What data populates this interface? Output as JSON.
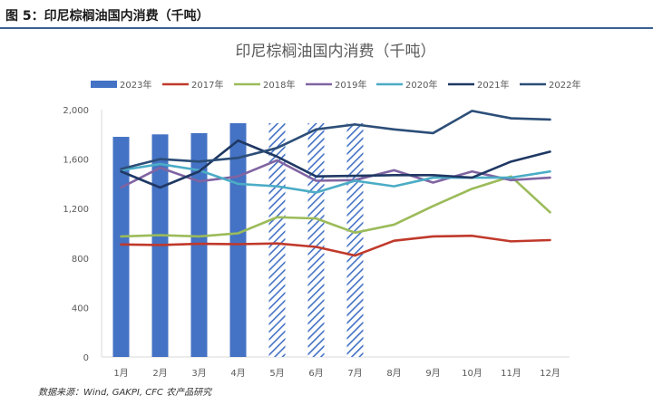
{
  "figure_title": "图 5：印尼棕榈油国内消费（千吨）",
  "source": "数据来源：Wind, GAKPI, CFC 农产品研究",
  "colors": {
    "bar_2023": "#4472c4",
    "hatch_bar": "#4472c4",
    "s2017": "#c0392b",
    "s2018": "#9bbb59",
    "s2019": "#8064a2",
    "s2020": "#4bacc6",
    "s2021": "#1f3864",
    "s2022": "#2c4e78",
    "rule": "#3a5f8f"
  },
  "chart_data": {
    "type": "bar",
    "title": "印尼棕榈油国内消费（千吨）",
    "categories": [
      "1月",
      "2月",
      "3月",
      "4月",
      "5月",
      "6月",
      "7月",
      "8月",
      "9月",
      "10月",
      "11月",
      "12月"
    ],
    "ylim": [
      0,
      2000
    ],
    "yticks": [
      "0",
      "400",
      "800",
      "1,200",
      "1,600",
      "2,000"
    ],
    "ytick_values": [
      0,
      400,
      800,
      1200,
      1600,
      2000
    ],
    "legend_position": "top",
    "bars": {
      "name": "2023年",
      "values": [
        1780,
        1800,
        1810,
        1890,
        null,
        null,
        null,
        null,
        null,
        null,
        null,
        null
      ],
      "hatched_values": [
        null,
        null,
        null,
        null,
        1890,
        1890,
        1890,
        null,
        null,
        null,
        null,
        null
      ]
    },
    "series": [
      {
        "name": "2017年",
        "values": [
          910,
          905,
          915,
          912,
          918,
          890,
          820,
          940,
          975,
          980,
          935,
          945
        ]
      },
      {
        "name": "2018年",
        "values": [
          975,
          985,
          975,
          1000,
          1130,
          1120,
          1005,
          1070,
          1220,
          1360,
          1460,
          1170
        ]
      },
      {
        "name": "2019年",
        "values": [
          1370,
          1530,
          1420,
          1460,
          1590,
          1425,
          1430,
          1510,
          1410,
          1500,
          1430,
          1450
        ]
      },
      {
        "name": "2020年",
        "values": [
          1510,
          1560,
          1510,
          1400,
          1380,
          1330,
          1425,
          1380,
          1450,
          1450,
          1450,
          1500
        ]
      },
      {
        "name": "2021年",
        "values": [
          1500,
          1370,
          1500,
          1750,
          1620,
          1460,
          1465,
          1470,
          1470,
          1450,
          1580,
          1660
        ]
      },
      {
        "name": "2022年",
        "values": [
          1520,
          1600,
          1580,
          1610,
          1690,
          1840,
          1880,
          1840,
          1810,
          1990,
          1930,
          1920
        ]
      }
    ]
  }
}
